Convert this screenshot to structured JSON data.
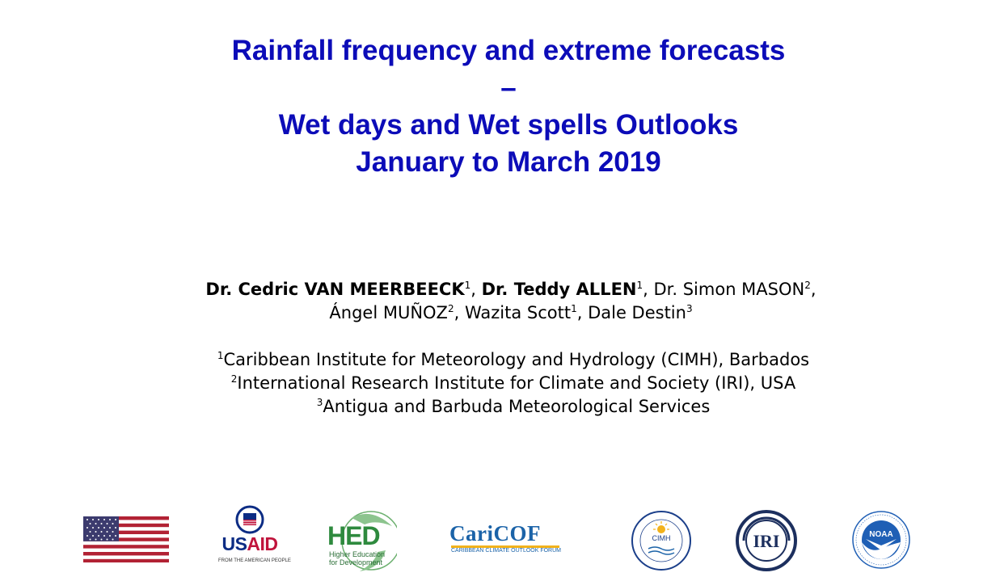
{
  "title": {
    "line1": "Rainfall frequency and extreme forecasts",
    "line2": "–",
    "line3": "Wet days and Wet spells Outlooks",
    "line4": "January to March 2019"
  },
  "authors": {
    "a1_name": "Dr. Cedric VAN MEERBEECK",
    "a1_sup": "1",
    "a2_name": "Dr. Teddy ALLEN",
    "a2_sup": "1",
    "a3_name": "Dr. Simon MASON",
    "a3_sup": "2",
    "a4_name": "Ángel MUÑOZ",
    "a4_sup": "2",
    "a5_name": "Wazita Scott",
    "a5_sup": "1",
    "a6_name": "Dale Destin",
    "a6_sup": "3"
  },
  "affiliations": [
    {
      "sup": "1",
      "text": "Caribbean Institute for Meteorology and Hydrology (CIMH), Barbados"
    },
    {
      "sup": "2",
      "text": "International Research Institute for Climate and Society (IRI), USA"
    },
    {
      "sup": "3",
      "text": "Antigua and Barbuda Meteorological Services"
    }
  ],
  "logos": {
    "usaid_us": "US",
    "usaid_aid": "AID",
    "usaid_tagline": "FROM THE AMERICAN PEOPLE",
    "hed_main": "HED",
    "hed_sub": "Higher Education for Development",
    "caricof_main": "CariCOF",
    "caricof_sub": "CARIBBEAN CLIMATE OUTLOOK FORUM",
    "cimh_label": "CIMH",
    "iri_label": "IRI",
    "noaa_label": "NOAA"
  },
  "colors": {
    "title": "#0c0cb8",
    "usaid_red": "#c0143c",
    "usaid_blue": "#0c2c84",
    "hed_green": "#2e8a3e",
    "caricof_blue": "#1b63a8",
    "iri_navy": "#1c2f5e",
    "noaa_blue": "#1f5fb5"
  },
  "icons": [
    "us-flag-icon",
    "usaid-logo",
    "hed-logo",
    "caricof-logo",
    "cimh-logo",
    "iri-logo",
    "noaa-logo"
  ]
}
